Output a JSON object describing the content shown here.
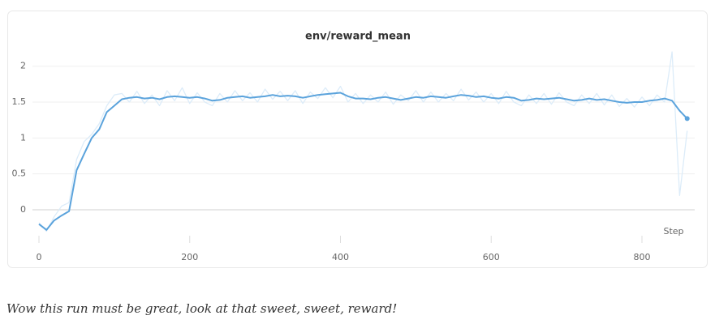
{
  "chart_data": {
    "type": "line",
    "title": "env/reward_mean",
    "xlabel": "Step",
    "x": [
      0,
      10,
      20,
      30,
      40,
      50,
      60,
      70,
      80,
      90,
      100,
      110,
      120,
      130,
      140,
      150,
      160,
      170,
      180,
      190,
      200,
      210,
      220,
      230,
      240,
      250,
      260,
      270,
      280,
      290,
      300,
      310,
      320,
      330,
      340,
      350,
      360,
      370,
      380,
      390,
      400,
      410,
      420,
      430,
      440,
      450,
      460,
      470,
      480,
      490,
      500,
      510,
      520,
      530,
      540,
      550,
      560,
      570,
      580,
      590,
      600,
      610,
      620,
      630,
      640,
      650,
      660,
      670,
      680,
      690,
      700,
      710,
      720,
      730,
      740,
      750,
      760,
      770,
      780,
      790,
      800,
      810,
      820,
      830,
      840,
      850,
      860
    ],
    "series": [
      {
        "color": "#dcecf9",
        "values": [
          -0.18,
          -0.3,
          -0.1,
          0.05,
          0.1,
          0.7,
          0.95,
          1.05,
          1.2,
          1.45,
          1.6,
          1.62,
          1.5,
          1.65,
          1.48,
          1.6,
          1.45,
          1.66,
          1.52,
          1.7,
          1.48,
          1.63,
          1.5,
          1.45,
          1.62,
          1.5,
          1.66,
          1.52,
          1.63,
          1.5,
          1.68,
          1.54,
          1.65,
          1.52,
          1.66,
          1.48,
          1.64,
          1.55,
          1.7,
          1.56,
          1.72,
          1.5,
          1.62,
          1.48,
          1.6,
          1.5,
          1.64,
          1.47,
          1.6,
          1.52,
          1.66,
          1.5,
          1.64,
          1.5,
          1.62,
          1.52,
          1.68,
          1.53,
          1.64,
          1.5,
          1.62,
          1.48,
          1.65,
          1.5,
          1.45,
          1.6,
          1.48,
          1.62,
          1.47,
          1.63,
          1.5,
          1.45,
          1.6,
          1.48,
          1.62,
          1.46,
          1.6,
          1.44,
          1.55,
          1.43,
          1.57,
          1.45,
          1.6,
          1.5,
          2.2,
          0.2,
          1.1
        ]
      },
      {
        "color": "#5ba3dc",
        "values": [
          -0.2,
          -0.28,
          -0.15,
          -0.08,
          -0.02,
          0.55,
          0.78,
          1.0,
          1.12,
          1.36,
          1.45,
          1.54,
          1.56,
          1.57,
          1.55,
          1.56,
          1.54,
          1.57,
          1.58,
          1.57,
          1.56,
          1.57,
          1.55,
          1.52,
          1.53,
          1.56,
          1.57,
          1.58,
          1.56,
          1.57,
          1.58,
          1.6,
          1.58,
          1.59,
          1.58,
          1.56,
          1.58,
          1.6,
          1.61,
          1.62,
          1.63,
          1.58,
          1.55,
          1.55,
          1.54,
          1.56,
          1.57,
          1.55,
          1.53,
          1.55,
          1.57,
          1.56,
          1.58,
          1.57,
          1.56,
          1.58,
          1.6,
          1.59,
          1.57,
          1.58,
          1.56,
          1.55,
          1.57,
          1.56,
          1.52,
          1.53,
          1.55,
          1.54,
          1.55,
          1.56,
          1.54,
          1.52,
          1.53,
          1.55,
          1.53,
          1.54,
          1.52,
          1.5,
          1.49,
          1.5,
          1.5,
          1.52,
          1.53,
          1.55,
          1.52,
          1.38,
          1.27
        ]
      }
    ],
    "xlim": [
      0,
      870
    ],
    "xticks": [
      0,
      200,
      400,
      600,
      800
    ],
    "ylim": [
      -0.35,
      2.2
    ],
    "yticks": [
      0,
      0.5,
      1,
      1.5,
      2
    ],
    "grid": true
  },
  "caption": "Wow this run must be great, look at that sweet, sweet, reward!"
}
